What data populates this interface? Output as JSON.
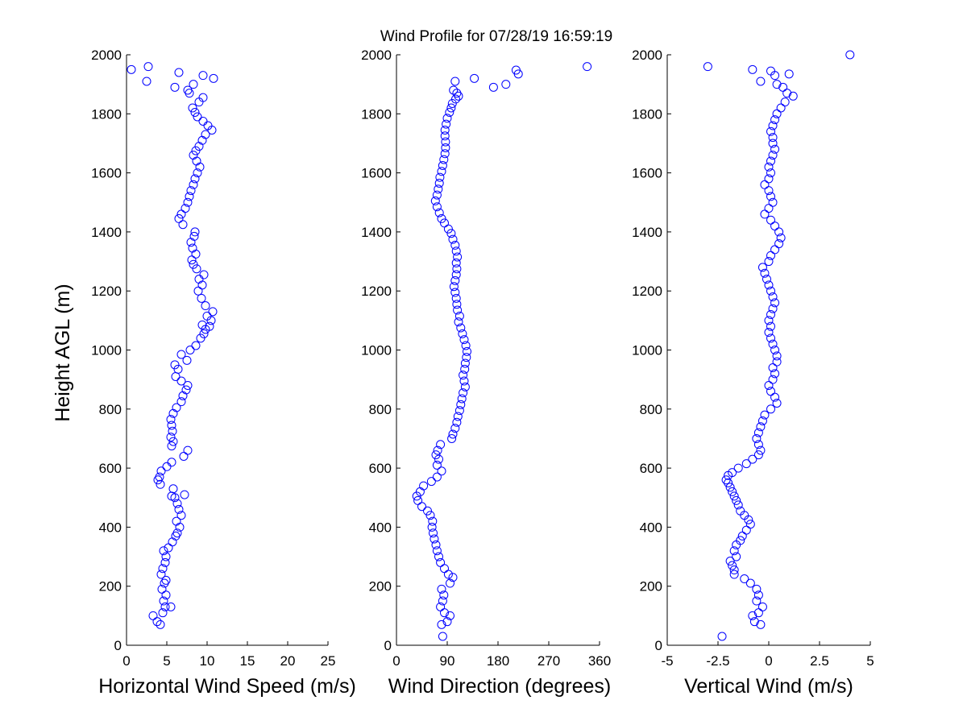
{
  "figure_title": "Wind Profile for  07/28/19 16:59:19",
  "ylabel": "Height AGL (m)",
  "marker_color": "#0000ff",
  "chart_data": [
    {
      "type": "scatter",
      "name": "speed",
      "title": "Wind Profile for  07/28/19 16:59:19",
      "xlabel": "Horizontal Wind Speed (m/s)",
      "ylabel": "Height AGL (m)",
      "xlim": [
        0,
        25
      ],
      "ylim": [
        0,
        2000
      ],
      "xticks": [
        0,
        5,
        10,
        15,
        20,
        25
      ],
      "xtick_labels": [
        "0",
        "5",
        "10",
        "15",
        "20",
        "25"
      ],
      "yticks": [
        0,
        200,
        400,
        600,
        800,
        1000,
        1200,
        1400,
        1600,
        1800,
        2000
      ],
      "ytick_labels": [
        "0",
        "200",
        "400",
        "600",
        "800",
        "1000",
        "1200",
        "1400",
        "1600",
        "1800",
        "2000"
      ],
      "grid": false,
      "points": [
        [
          4.2,
          70
        ],
        [
          3.8,
          80
        ],
        [
          3.3,
          100
        ],
        [
          4.5,
          110
        ],
        [
          4.8,
          130
        ],
        [
          5.5,
          130
        ],
        [
          4.6,
          150
        ],
        [
          4.9,
          170
        ],
        [
          4.4,
          190
        ],
        [
          4.7,
          210
        ],
        [
          4.9,
          220
        ],
        [
          4.3,
          240
        ],
        [
          4.5,
          260
        ],
        [
          4.8,
          280
        ],
        [
          4.9,
          300
        ],
        [
          4.6,
          320
        ],
        [
          5.2,
          330
        ],
        [
          5.7,
          350
        ],
        [
          6.1,
          370
        ],
        [
          6.3,
          380
        ],
        [
          6.6,
          400
        ],
        [
          6.2,
          420
        ],
        [
          6.8,
          440
        ],
        [
          6.5,
          460
        ],
        [
          6.3,
          480
        ],
        [
          6.0,
          500
        ],
        [
          5.6,
          505
        ],
        [
          7.2,
          510
        ],
        [
          5.8,
          530
        ],
        [
          4.2,
          545
        ],
        [
          3.9,
          560
        ],
        [
          4.1,
          570
        ],
        [
          4.3,
          590
        ],
        [
          5.0,
          605
        ],
        [
          5.6,
          620
        ],
        [
          7.1,
          640
        ],
        [
          7.6,
          660
        ],
        [
          5.6,
          675
        ],
        [
          5.8,
          690
        ],
        [
          5.5,
          705
        ],
        [
          5.7,
          725
        ],
        [
          5.6,
          745
        ],
        [
          5.5,
          765
        ],
        [
          5.8,
          785
        ],
        [
          6.2,
          805
        ],
        [
          6.8,
          825
        ],
        [
          7.0,
          845
        ],
        [
          7.4,
          865
        ],
        [
          7.6,
          880
        ],
        [
          6.8,
          895
        ],
        [
          6.1,
          910
        ],
        [
          6.4,
          935
        ],
        [
          6.0,
          950
        ],
        [
          7.5,
          965
        ],
        [
          6.8,
          985
        ],
        [
          7.9,
          1000
        ],
        [
          8.6,
          1015
        ],
        [
          9.2,
          1040
        ],
        [
          9.6,
          1055
        ],
        [
          9.8,
          1070
        ],
        [
          10.3,
          1080
        ],
        [
          9.4,
          1085
        ],
        [
          10.5,
          1100
        ],
        [
          10.0,
          1115
        ],
        [
          10.7,
          1130
        ],
        [
          9.8,
          1150
        ],
        [
          9.3,
          1175
        ],
        [
          8.9,
          1200
        ],
        [
          9.4,
          1220
        ],
        [
          9.0,
          1240
        ],
        [
          9.6,
          1255
        ],
        [
          8.7,
          1275
        ],
        [
          8.3,
          1290
        ],
        [
          8.1,
          1305
        ],
        [
          8.6,
          1325
        ],
        [
          8.2,
          1345
        ],
        [
          8.0,
          1365
        ],
        [
          8.4,
          1385
        ],
        [
          8.5,
          1400
        ],
        [
          7.0,
          1425
        ],
        [
          6.5,
          1445
        ],
        [
          6.8,
          1460
        ],
        [
          7.3,
          1480
        ],
        [
          7.6,
          1500
        ],
        [
          7.8,
          1520
        ],
        [
          8.0,
          1540
        ],
        [
          8.3,
          1560
        ],
        [
          8.5,
          1580
        ],
        [
          8.8,
          1600
        ],
        [
          9.1,
          1620
        ],
        [
          8.7,
          1640
        ],
        [
          8.3,
          1660
        ],
        [
          8.6,
          1675
        ],
        [
          9.0,
          1690
        ],
        [
          9.4,
          1710
        ],
        [
          9.8,
          1730
        ],
        [
          10.6,
          1745
        ],
        [
          10.1,
          1760
        ],
        [
          9.5,
          1775
        ],
        [
          8.8,
          1790
        ],
        [
          8.5,
          1805
        ],
        [
          8.2,
          1820
        ],
        [
          9.0,
          1840
        ],
        [
          9.5,
          1855
        ],
        [
          7.8,
          1870
        ],
        [
          7.6,
          1880
        ],
        [
          6.0,
          1890
        ],
        [
          8.3,
          1900
        ],
        [
          10.8,
          1920
        ],
        [
          9.5,
          1930
        ],
        [
          2.5,
          1910
        ],
        [
          6.5,
          1940
        ],
        [
          0.6,
          1950
        ],
        [
          2.7,
          1960
        ]
      ]
    },
    {
      "type": "scatter",
      "name": "direction",
      "xlabel": "Wind Direction (degrees)",
      "ylabel": "",
      "xlim": [
        0,
        360
      ],
      "ylim": [
        0,
        2000
      ],
      "xticks": [
        0,
        90,
        180,
        270,
        360
      ],
      "xtick_labels": [
        "0",
        "90",
        "180",
        "270",
        "360"
      ],
      "yticks": [
        0,
        200,
        400,
        600,
        800,
        1000,
        1200,
        1400,
        1600,
        1800,
        2000
      ],
      "ytick_labels": [
        "0",
        "200",
        "400",
        "600",
        "800",
        "1000",
        "1200",
        "1400",
        "1600",
        "1800",
        "2000"
      ],
      "grid": false,
      "points": [
        [
          82,
          30
        ],
        [
          80,
          70
        ],
        [
          90,
          80
        ],
        [
          95,
          100
        ],
        [
          85,
          110
        ],
        [
          78,
          130
        ],
        [
          82,
          150
        ],
        [
          84,
          170
        ],
        [
          80,
          190
        ],
        [
          95,
          210
        ],
        [
          100,
          230
        ],
        [
          92,
          240
        ],
        [
          85,
          260
        ],
        [
          78,
          280
        ],
        [
          75,
          300
        ],
        [
          72,
          320
        ],
        [
          70,
          340
        ],
        [
          67,
          360
        ],
        [
          65,
          380
        ],
        [
          63,
          400
        ],
        [
          64,
          420
        ],
        [
          60,
          440
        ],
        [
          55,
          455
        ],
        [
          45,
          470
        ],
        [
          38,
          490
        ],
        [
          36,
          505
        ],
        [
          42,
          520
        ],
        [
          48,
          540
        ],
        [
          62,
          555
        ],
        [
          72,
          570
        ],
        [
          80,
          590
        ],
        [
          72,
          610
        ],
        [
          75,
          630
        ],
        [
          70,
          645
        ],
        [
          73,
          660
        ],
        [
          78,
          680
        ],
        [
          98,
          700
        ],
        [
          100,
          715
        ],
        [
          104,
          735
        ],
        [
          107,
          755
        ],
        [
          109,
          775
        ],
        [
          112,
          795
        ],
        [
          114,
          815
        ],
        [
          116,
          835
        ],
        [
          118,
          855
        ],
        [
          122,
          875
        ],
        [
          120,
          895
        ],
        [
          118,
          915
        ],
        [
          121,
          935
        ],
        [
          122,
          955
        ],
        [
          124,
          975
        ],
        [
          125,
          995
        ],
        [
          123,
          1015
        ],
        [
          120,
          1035
        ],
        [
          117,
          1055
        ],
        [
          114,
          1075
        ],
        [
          110,
          1095
        ],
        [
          112,
          1115
        ],
        [
          108,
          1135
        ],
        [
          107,
          1155
        ],
        [
          106,
          1175
        ],
        [
          104,
          1195
        ],
        [
          102,
          1215
        ],
        [
          104,
          1235
        ],
        [
          106,
          1255
        ],
        [
          107,
          1275
        ],
        [
          106,
          1295
        ],
        [
          108,
          1315
        ],
        [
          106,
          1335
        ],
        [
          104,
          1355
        ],
        [
          100,
          1375
        ],
        [
          97,
          1395
        ],
        [
          92,
          1410
        ],
        [
          85,
          1430
        ],
        [
          80,
          1445
        ],
        [
          76,
          1465
        ],
        [
          72,
          1485
        ],
        [
          69,
          1505
        ],
        [
          72,
          1525
        ],
        [
          74,
          1545
        ],
        [
          76,
          1565
        ],
        [
          77,
          1585
        ],
        [
          80,
          1605
        ],
        [
          82,
          1625
        ],
        [
          84,
          1645
        ],
        [
          86,
          1665
        ],
        [
          87,
          1685
        ],
        [
          87,
          1705
        ],
        [
          86,
          1725
        ],
        [
          86,
          1745
        ],
        [
          88,
          1765
        ],
        [
          90,
          1785
        ],
        [
          94,
          1805
        ],
        [
          97,
          1820
        ],
        [
          99,
          1835
        ],
        [
          105,
          1850
        ],
        [
          110,
          1860
        ],
        [
          107,
          1870
        ],
        [
          101,
          1880
        ],
        [
          104,
          1910
        ],
        [
          138,
          1920
        ],
        [
          172,
          1890
        ],
        [
          194,
          1900
        ],
        [
          216,
          1935
        ],
        [
          212,
          1948
        ],
        [
          338,
          1960
        ]
      ]
    },
    {
      "type": "scatter",
      "name": "vertical",
      "xlabel": "Vertical Wind (m/s)",
      "ylabel": "",
      "xlim": [
        -5,
        5
      ],
      "ylim": [
        0,
        2000
      ],
      "xticks": [
        -5,
        -2.5,
        0,
        2.5,
        5
      ],
      "xtick_labels": [
        "-5",
        "-2.5",
        "0",
        "2.5",
        "5"
      ],
      "yticks": [
        0,
        200,
        400,
        600,
        800,
        1000,
        1200,
        1400,
        1600,
        1800,
        2000
      ],
      "ytick_labels": [
        "0",
        "200",
        "400",
        "600",
        "800",
        "1000",
        "1200",
        "1400",
        "1600",
        "1800",
        "2000"
      ],
      "grid": false,
      "points": [
        [
          -2.3,
          30
        ],
        [
          -0.4,
          70
        ],
        [
          -0.7,
          80
        ],
        [
          -0.8,
          100
        ],
        [
          -0.5,
          110
        ],
        [
          -0.3,
          130
        ],
        [
          -0.6,
          150
        ],
        [
          -0.5,
          170
        ],
        [
          -0.6,
          190
        ],
        [
          -0.9,
          210
        ],
        [
          -1.2,
          225
        ],
        [
          -1.7,
          240
        ],
        [
          -1.7,
          255
        ],
        [
          -1.8,
          270
        ],
        [
          -1.9,
          285
        ],
        [
          -1.6,
          300
        ],
        [
          -1.7,
          320
        ],
        [
          -1.6,
          340
        ],
        [
          -1.4,
          355
        ],
        [
          -1.3,
          370
        ],
        [
          -1.1,
          390
        ],
        [
          -0.9,
          410
        ],
        [
          -1.0,
          425
        ],
        [
          -1.2,
          440
        ],
        [
          -1.4,
          455
        ],
        [
          -1.5,
          475
        ],
        [
          -1.6,
          490
        ],
        [
          -1.7,
          505
        ],
        [
          -1.8,
          520
        ],
        [
          -1.9,
          535
        ],
        [
          -2.0,
          550
        ],
        [
          -2.1,
          560
        ],
        [
          -2.0,
          575
        ],
        [
          -1.8,
          585
        ],
        [
          -1.5,
          600
        ],
        [
          -1.1,
          615
        ],
        [
          -0.8,
          630
        ],
        [
          -0.5,
          645
        ],
        [
          -0.4,
          660
        ],
        [
          -0.5,
          680
        ],
        [
          -0.6,
          700
        ],
        [
          -0.5,
          720
        ],
        [
          -0.4,
          740
        ],
        [
          -0.3,
          760
        ],
        [
          -0.2,
          780
        ],
        [
          0.1,
          800
        ],
        [
          0.4,
          820
        ],
        [
          0.3,
          840
        ],
        [
          0.1,
          860
        ],
        [
          0.0,
          880
        ],
        [
          0.2,
          900
        ],
        [
          0.3,
          920
        ],
        [
          0.2,
          940
        ],
        [
          0.4,
          960
        ],
        [
          0.4,
          980
        ],
        [
          0.3,
          1000
        ],
        [
          0.2,
          1020
        ],
        [
          0.1,
          1040
        ],
        [
          0.0,
          1060
        ],
        [
          0.1,
          1080
        ],
        [
          0.0,
          1100
        ],
        [
          0.1,
          1120
        ],
        [
          0.2,
          1140
        ],
        [
          0.3,
          1160
        ],
        [
          0.2,
          1180
        ],
        [
          0.1,
          1200
        ],
        [
          0.0,
          1220
        ],
        [
          -0.1,
          1240
        ],
        [
          -0.2,
          1260
        ],
        [
          -0.3,
          1280
        ],
        [
          0.0,
          1300
        ],
        [
          0.1,
          1320
        ],
        [
          0.3,
          1340
        ],
        [
          0.5,
          1360
        ],
        [
          0.6,
          1380
        ],
        [
          0.5,
          1400
        ],
        [
          0.3,
          1420
        ],
        [
          0.1,
          1440
        ],
        [
          -0.2,
          1460
        ],
        [
          0.0,
          1480
        ],
        [
          0.2,
          1500
        ],
        [
          0.1,
          1520
        ],
        [
          0.0,
          1540
        ],
        [
          -0.2,
          1560
        ],
        [
          0.0,
          1580
        ],
        [
          0.1,
          1600
        ],
        [
          0.0,
          1620
        ],
        [
          0.1,
          1640
        ],
        [
          0.2,
          1660
        ],
        [
          0.3,
          1680
        ],
        [
          0.2,
          1700
        ],
        [
          0.2,
          1720
        ],
        [
          0.1,
          1740
        ],
        [
          0.2,
          1760
        ],
        [
          0.3,
          1780
        ],
        [
          0.4,
          1800
        ],
        [
          0.6,
          1820
        ],
        [
          0.8,
          1840
        ],
        [
          1.2,
          1860
        ],
        [
          0.9,
          1870
        ],
        [
          0.7,
          1890
        ],
        [
          0.4,
          1900
        ],
        [
          -0.4,
          1910
        ],
        [
          0.3,
          1930
        ],
        [
          1.0,
          1935
        ],
        [
          0.1,
          1945
        ],
        [
          -0.8,
          1950
        ],
        [
          -3.0,
          1960
        ],
        [
          4.0,
          2000
        ]
      ]
    }
  ]
}
